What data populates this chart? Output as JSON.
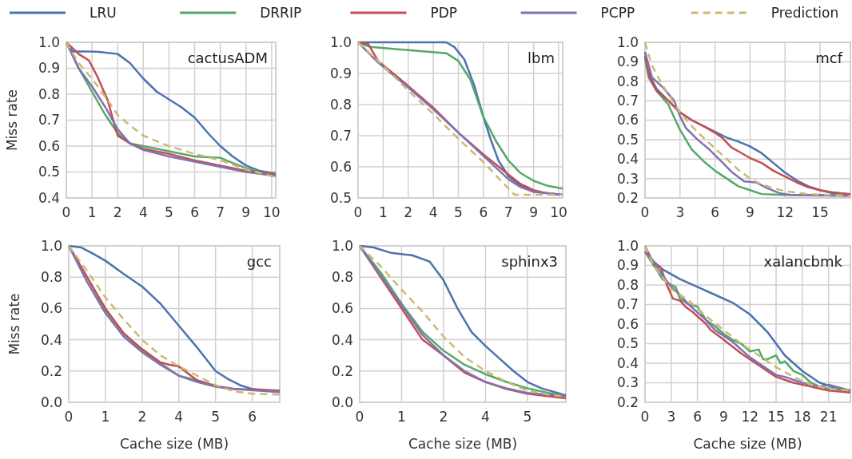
{
  "chart_data": [
    {
      "type": "line",
      "title": "cactusADM",
      "ylabel": "Miss rate",
      "legend": "top",
      "grid": true,
      "xlim": [
        0,
        10.2
      ],
      "ylim": [
        0.4,
        1.0
      ],
      "yticks": [
        {
          "value": 0.4,
          "label": "0.4"
        },
        {
          "value": 0.5,
          "label": "0.5"
        },
        {
          "value": 0.6,
          "label": "0.6"
        },
        {
          "value": 0.7,
          "label": "0.7"
        },
        {
          "value": 0.8,
          "label": "0.8"
        },
        {
          "value": 0.9,
          "label": "0.9"
        },
        {
          "value": 1.0,
          "label": "1.0"
        }
      ],
      "xticks": [
        0,
        {
          "value": 1.25,
          "label": "1"
        },
        {
          "value": 2.5,
          "label": "2"
        },
        {
          "value": 3.75,
          "label": "4"
        },
        5,
        {
          "value": 6.25,
          "label": "6"
        },
        {
          "value": 7.5,
          "label": "7"
        },
        {
          "value": 8.75,
          "label": "9"
        },
        10
      ],
      "series": [
        {
          "name": "LRU",
          "color": "#4c72b0",
          "x": [
            0,
            0.3,
            1,
            1.6,
            2.5,
            3.1,
            3.75,
            4.4,
            5,
            5.6,
            6.25,
            6.9,
            7.5,
            8.1,
            8.75,
            9.4,
            10.2
          ],
          "values": [
            1.0,
            0.965,
            0.965,
            0.963,
            0.955,
            0.92,
            0.86,
            0.81,
            0.78,
            0.75,
            0.71,
            0.65,
            0.6,
            0.56,
            0.525,
            0.505,
            0.495
          ]
        },
        {
          "name": "DRRIP",
          "color": "#55a868",
          "x": [
            0,
            0.6,
            1.25,
            1.9,
            2.5,
            3.1,
            3.75,
            5,
            6.25,
            7.5,
            8.1,
            8.75,
            9.4,
            10.2
          ],
          "values": [
            1.0,
            0.9,
            0.81,
            0.72,
            0.65,
            0.61,
            0.6,
            0.58,
            0.56,
            0.555,
            0.535,
            0.515,
            0.5,
            0.495
          ]
        },
        {
          "name": "PDP",
          "color": "#c44e52",
          "x": [
            0,
            0.6,
            1.1,
            1.5,
            2,
            2.5,
            3.1,
            3.75,
            5,
            6.25,
            7.5,
            8.75,
            10.2
          ],
          "values": [
            1.0,
            0.955,
            0.93,
            0.87,
            0.78,
            0.64,
            0.61,
            0.59,
            0.57,
            0.545,
            0.525,
            0.505,
            0.49
          ]
        },
        {
          "name": "PCPP",
          "color": "#8172b2",
          "x": [
            0,
            0.6,
            1.25,
            1.9,
            2.5,
            3.1,
            3.75,
            5,
            6.25,
            7.5,
            8.75,
            10.2
          ],
          "values": [
            1.0,
            0.9,
            0.83,
            0.75,
            0.665,
            0.61,
            0.585,
            0.56,
            0.54,
            0.52,
            0.5,
            0.485
          ]
        },
        {
          "name": "Prediction",
          "color": "#ccb974",
          "line_style": "dashed",
          "x": [
            0,
            0.6,
            1.25,
            1.9,
            2.5,
            3.1,
            3.75,
            5,
            6.25,
            7.5,
            8.75,
            10.2
          ],
          "values": [
            1.0,
            0.92,
            0.86,
            0.79,
            0.72,
            0.68,
            0.64,
            0.6,
            0.57,
            0.545,
            0.51,
            0.48
          ]
        }
      ]
    },
    {
      "type": "line",
      "title": "lbm",
      "grid": true,
      "xlim": [
        0,
        10.2
      ],
      "ylim": [
        0.5,
        1.0
      ],
      "yticks": [
        {
          "value": 0.5,
          "label": "0.5"
        },
        {
          "value": 0.6,
          "label": "0.6"
        },
        {
          "value": 0.7,
          "label": "0.7"
        },
        {
          "value": 0.8,
          "label": "0.8"
        },
        {
          "value": 0.9,
          "label": "0.9"
        },
        {
          "value": 1.0,
          "label": "1.0"
        }
      ],
      "xticks": [
        0,
        {
          "value": 1.25,
          "label": "1"
        },
        {
          "value": 2.5,
          "label": "2"
        },
        {
          "value": 3.75,
          "label": "4"
        },
        5,
        {
          "value": 6.25,
          "label": "6"
        },
        {
          "value": 7.5,
          "label": "7"
        },
        {
          "value": 8.75,
          "label": "9"
        },
        10
      ],
      "series": [
        {
          "color": "#4c72b0",
          "x": [
            0,
            4.4,
            4.8,
            5.3,
            5.8,
            6.25,
            6.6,
            7.0,
            7.5,
            8.1,
            8.75,
            10.2
          ],
          "values": [
            1.0,
            1.0,
            0.985,
            0.945,
            0.86,
            0.76,
            0.69,
            0.62,
            0.57,
            0.54,
            0.52,
            0.51
          ]
        },
        {
          "color": "#55a868",
          "x": [
            0,
            0.6,
            2.5,
            4.4,
            5,
            5.6,
            6.25,
            6.9,
            7.5,
            8.1,
            8.75,
            9.4,
            10.2
          ],
          "values": [
            1.0,
            0.985,
            0.975,
            0.965,
            0.94,
            0.88,
            0.76,
            0.68,
            0.62,
            0.58,
            0.555,
            0.54,
            0.53
          ]
        },
        {
          "color": "#c44e52",
          "x": [
            0,
            0.5,
            1,
            2.5,
            3.75,
            5,
            6.25,
            7.5,
            8.1,
            8.75,
            9.4,
            10.2
          ],
          "values": [
            1.0,
            0.995,
            0.94,
            0.86,
            0.79,
            0.71,
            0.64,
            0.575,
            0.545,
            0.525,
            0.515,
            0.51
          ]
        },
        {
          "color": "#8172b2",
          "x": [
            0,
            1,
            2.5,
            3.75,
            5,
            6.25,
            7.5,
            8.1,
            8.75,
            10.2
          ],
          "values": [
            1.0,
            0.935,
            0.855,
            0.785,
            0.71,
            0.635,
            0.56,
            0.535,
            0.52,
            0.51
          ]
        },
        {
          "color": "#ccb974",
          "line_style": "dashed",
          "x": [
            0,
            1.25,
            2.5,
            3.75,
            5,
            6.25,
            7.2,
            7.8,
            10.2
          ],
          "values": [
            1.0,
            0.925,
            0.845,
            0.77,
            0.69,
            0.615,
            0.55,
            0.51,
            0.51
          ]
        }
      ]
    },
    {
      "type": "line",
      "title": "mcf",
      "grid": true,
      "xlim": [
        0,
        17.6
      ],
      "ylim": [
        0.2,
        1.0
      ],
      "yticks": [
        {
          "value": 0.2,
          "label": "0.2"
        },
        {
          "value": 0.3,
          "label": "0.3"
        },
        {
          "value": 0.4,
          "label": "0.4"
        },
        {
          "value": 0.5,
          "label": "0.5"
        },
        {
          "value": 0.6,
          "label": "0.6"
        },
        {
          "value": 0.7,
          "label": "0.7"
        },
        {
          "value": 0.8,
          "label": "0.8"
        },
        {
          "value": 0.9,
          "label": "0.9"
        },
        {
          "value": 1.0,
          "label": "1.0"
        }
      ],
      "xticks": [
        0,
        3,
        6,
        9,
        12,
        15
      ],
      "series": [
        {
          "color": "#4c72b0",
          "x": [
            0,
            0.4,
            1,
            2,
            3,
            4,
            5,
            6,
            7,
            8,
            9,
            10,
            11,
            12,
            13,
            14,
            15,
            16,
            17.6
          ],
          "values": [
            0.95,
            0.83,
            0.76,
            0.7,
            0.64,
            0.6,
            0.57,
            0.54,
            0.51,
            0.49,
            0.465,
            0.43,
            0.38,
            0.33,
            0.29,
            0.26,
            0.24,
            0.225,
            0.22
          ]
        },
        {
          "color": "#55a868",
          "x": [
            0,
            0.3,
            1,
            2,
            2.3,
            3,
            4,
            5,
            6,
            7,
            8,
            9,
            10,
            12,
            17.6
          ],
          "values": [
            0.92,
            0.82,
            0.75,
            0.68,
            0.64,
            0.55,
            0.45,
            0.39,
            0.34,
            0.3,
            0.26,
            0.24,
            0.22,
            0.215,
            0.215
          ]
        },
        {
          "color": "#c44e52",
          "x": [
            0,
            0.4,
            1,
            2,
            3,
            4,
            5,
            6,
            6.6,
            7.4,
            8,
            9,
            10,
            11,
            12,
            13,
            14,
            15,
            16,
            17.6
          ],
          "values": [
            0.93,
            0.82,
            0.75,
            0.7,
            0.64,
            0.6,
            0.57,
            0.535,
            0.51,
            0.46,
            0.44,
            0.405,
            0.38,
            0.34,
            0.31,
            0.28,
            0.255,
            0.24,
            0.23,
            0.22
          ]
        },
        {
          "color": "#8172b2",
          "x": [
            0,
            0.6,
            1.5,
            2.5,
            3,
            3.5,
            4.5,
            5.5,
            6.5,
            7.5,
            8.5,
            9.5,
            10.5,
            11.5,
            12.5,
            17.6
          ],
          "values": [
            0.95,
            0.82,
            0.77,
            0.7,
            0.62,
            0.56,
            0.5,
            0.45,
            0.39,
            0.33,
            0.285,
            0.28,
            0.25,
            0.225,
            0.215,
            0.21
          ]
        },
        {
          "color": "#ccb974",
          "line_style": "dashed",
          "x": [
            0,
            0.6,
            1.5,
            3,
            4,
            5,
            6,
            7,
            8,
            9,
            10,
            11,
            12,
            14,
            16,
            17.6
          ],
          "values": [
            1.0,
            0.88,
            0.78,
            0.64,
            0.57,
            0.51,
            0.455,
            0.4,
            0.345,
            0.3,
            0.27,
            0.25,
            0.235,
            0.22,
            0.215,
            0.21
          ]
        }
      ]
    },
    {
      "type": "line",
      "title": "gcc",
      "ylabel": "Miss rate",
      "xlabel": "Cache size (MB)",
      "grid": true,
      "xlim": [
        0,
        6.9
      ],
      "ylim": [
        0,
        1.0
      ],
      "yticks": [
        {
          "value": 0,
          "label": "0.0"
        },
        {
          "value": 0.2,
          "label": "0.2"
        },
        {
          "value": 0.4,
          "label": "0.4"
        },
        {
          "value": 0.6,
          "label": "0.6"
        },
        {
          "value": 0.8,
          "label": "0.8"
        },
        {
          "value": 1.0,
          "label": "1.0"
        }
      ],
      "xticks": [
        0,
        {
          "value": 1.2,
          "label": "1"
        },
        {
          "value": 2.4,
          "label": "2"
        },
        {
          "value": 3.6,
          "label": "4"
        },
        {
          "value": 4.8,
          "label": "5"
        },
        6
      ],
      "series": [
        {
          "color": "#4c72b0",
          "x": [
            0,
            0.4,
            0.8,
            1.2,
            1.8,
            2.4,
            3.0,
            3.6,
            4.2,
            4.8,
            5.2,
            5.6,
            6.0,
            6.9
          ],
          "values": [
            1.0,
            0.99,
            0.95,
            0.905,
            0.82,
            0.74,
            0.63,
            0.49,
            0.35,
            0.2,
            0.15,
            0.11,
            0.085,
            0.07
          ]
        },
        {
          "color": "#55a868",
          "x": [
            0,
            0.6,
            1.2,
            1.8,
            2.4,
            3,
            3.6,
            4.2,
            4.8
          ],
          "values": [
            1.0,
            0.8,
            0.59,
            0.44,
            0.33,
            0.25,
            0.17,
            0.14,
            0.105
          ]
        },
        {
          "color": "#c44e52",
          "x": [
            0,
            0.6,
            1.2,
            1.8,
            2.4,
            3,
            3.3,
            3.6,
            4.0,
            4.2,
            4.8,
            5.4,
            6.9
          ],
          "values": [
            1.0,
            0.8,
            0.6,
            0.44,
            0.34,
            0.255,
            0.24,
            0.23,
            0.17,
            0.14,
            0.105,
            0.085,
            0.075
          ]
        },
        {
          "color": "#8172b2",
          "x": [
            0,
            0.6,
            1.2,
            1.8,
            2.4,
            3,
            3.6,
            4.2,
            4.8,
            5.4,
            6.9
          ],
          "values": [
            1.0,
            0.77,
            0.57,
            0.42,
            0.32,
            0.24,
            0.17,
            0.13,
            0.1,
            0.085,
            0.065
          ]
        },
        {
          "color": "#ccb974",
          "line_style": "dashed",
          "x": [
            0,
            0.6,
            1.2,
            1.8,
            2.4,
            3,
            3.6,
            4.2,
            4.8,
            5.4,
            6,
            6.9
          ],
          "values": [
            1.0,
            0.84,
            0.67,
            0.53,
            0.4,
            0.3,
            0.23,
            0.17,
            0.11,
            0.07,
            0.055,
            0.05
          ]
        }
      ]
    },
    {
      "type": "line",
      "title": "sphinx3",
      "xlabel": "Cache size (MB)",
      "grid": true,
      "xlim": [
        0,
        5.9
      ],
      "ylim": [
        0,
        1.0
      ],
      "yticks": [
        {
          "value": 0,
          "label": "0.0"
        },
        {
          "value": 0.2,
          "label": "0.2"
        },
        {
          "value": 0.4,
          "label": "0.4"
        },
        {
          "value": 0.6,
          "label": "0.6"
        },
        {
          "value": 0.8,
          "label": "0.8"
        },
        {
          "value": 1.0,
          "label": "1.0"
        }
      ],
      "xticks": [
        0,
        {
          "value": 1.2,
          "label": "1"
        },
        {
          "value": 2.4,
          "label": "2"
        },
        {
          "value": 3.6,
          "label": "4"
        },
        {
          "value": 4.8,
          "label": "5"
        }
      ],
      "series": [
        {
          "color": "#4c72b0",
          "x": [
            0,
            0.4,
            0.9,
            1.5,
            2.0,
            2.4,
            2.8,
            3.2,
            3.6,
            4.0,
            4.4,
            4.8,
            5.2,
            5.9
          ],
          "values": [
            1.0,
            0.99,
            0.955,
            0.94,
            0.9,
            0.78,
            0.6,
            0.45,
            0.36,
            0.28,
            0.2,
            0.13,
            0.09,
            0.045
          ]
        },
        {
          "color": "#55a868",
          "x": [
            0,
            0.6,
            1.2,
            1.8,
            2.4,
            3.0,
            3.6,
            4.2,
            4.8,
            5.4,
            5.9
          ],
          "values": [
            1.0,
            0.83,
            0.63,
            0.45,
            0.33,
            0.24,
            0.18,
            0.13,
            0.09,
            0.06,
            0.04
          ]
        },
        {
          "color": "#c44e52",
          "x": [
            0,
            0.6,
            1.2,
            1.8,
            2.4,
            3.0,
            3.6,
            4.2,
            4.8,
            5.9
          ],
          "values": [
            1.0,
            0.8,
            0.6,
            0.4,
            0.3,
            0.19,
            0.13,
            0.085,
            0.055,
            0.025
          ]
        },
        {
          "color": "#8172b2",
          "x": [
            0,
            0.6,
            1.2,
            1.8,
            2.4,
            3.0,
            3.6,
            4.2,
            4.8,
            5.9
          ],
          "values": [
            1.0,
            0.81,
            0.62,
            0.43,
            0.3,
            0.2,
            0.13,
            0.09,
            0.06,
            0.04
          ]
        },
        {
          "color": "#ccb974",
          "line_style": "dashed",
          "x": [
            0,
            0.6,
            1.2,
            1.8,
            2.4,
            3.0,
            3.6,
            4.2,
            4.8,
            5.4,
            5.9
          ],
          "values": [
            1.0,
            0.87,
            0.72,
            0.58,
            0.42,
            0.29,
            0.2,
            0.13,
            0.075,
            0.05,
            0.035
          ]
        }
      ]
    },
    {
      "type": "line",
      "title": "xalancbmk",
      "xlabel": "Cache size (MB)",
      "grid": true,
      "xlim": [
        0,
        23.5
      ],
      "ylim": [
        0.2,
        1.0
      ],
      "yticks": [
        {
          "value": 0.2,
          "label": "0.2"
        },
        {
          "value": 0.3,
          "label": "0.3"
        },
        {
          "value": 0.4,
          "label": "0.4"
        },
        {
          "value": 0.5,
          "label": "0.5"
        },
        {
          "value": 0.6,
          "label": "0.6"
        },
        {
          "value": 0.7,
          "label": "0.7"
        },
        {
          "value": 0.8,
          "label": "0.8"
        },
        {
          "value": 0.9,
          "label": "0.9"
        },
        {
          "value": 1.0,
          "label": "1.0"
        }
      ],
      "xticks": [
        0,
        3,
        6,
        9,
        12,
        15,
        18,
        21
      ],
      "series": [
        {
          "color": "#4c72b0",
          "x": [
            0,
            1,
            2,
            4,
            6,
            8,
            10,
            12,
            14,
            15,
            16,
            18,
            20,
            22,
            23.5
          ],
          "values": [
            0.97,
            0.92,
            0.88,
            0.83,
            0.79,
            0.75,
            0.71,
            0.65,
            0.56,
            0.5,
            0.44,
            0.36,
            0.3,
            0.27,
            0.26
          ]
        },
        {
          "color": "#55a868",
          "x": [
            0,
            1,
            2,
            3,
            3.5,
            4,
            5,
            6,
            7,
            8,
            9,
            10,
            11,
            12,
            13,
            13.5,
            14,
            15,
            15.5,
            16,
            17,
            18,
            19,
            20,
            21,
            23.5
          ],
          "values": [
            0.97,
            0.9,
            0.83,
            0.8,
            0.79,
            0.73,
            0.7,
            0.69,
            0.62,
            0.59,
            0.55,
            0.52,
            0.5,
            0.46,
            0.47,
            0.42,
            0.42,
            0.44,
            0.4,
            0.41,
            0.36,
            0.34,
            0.3,
            0.28,
            0.27,
            0.26
          ]
        },
        {
          "color": "#c44e52",
          "x": [
            0,
            1,
            1.8,
            2.5,
            3.2,
            4,
            4.6,
            5.5,
            6,
            7,
            7.5,
            9,
            11,
            13,
            15,
            17,
            19,
            21,
            23.5
          ],
          "values": [
            1.0,
            0.91,
            0.89,
            0.8,
            0.73,
            0.72,
            0.69,
            0.66,
            0.64,
            0.6,
            0.57,
            0.52,
            0.45,
            0.39,
            0.33,
            0.3,
            0.28,
            0.26,
            0.25
          ]
        },
        {
          "color": "#8172b2",
          "x": [
            0,
            1,
            2,
            3,
            4,
            5,
            6,
            7,
            8,
            10,
            12,
            14,
            15,
            16,
            18,
            19,
            20,
            21,
            23.5
          ],
          "values": [
            0.97,
            0.92,
            0.85,
            0.79,
            0.75,
            0.7,
            0.66,
            0.62,
            0.57,
            0.51,
            0.43,
            0.37,
            0.34,
            0.33,
            0.3,
            0.29,
            0.28,
            0.29,
            0.26
          ]
        },
        {
          "color": "#ccb974",
          "line_style": "dashed",
          "x": [
            0,
            1,
            2,
            3,
            5,
            7,
            9,
            11,
            13,
            15,
            17,
            19,
            21,
            23.5
          ],
          "values": [
            1.0,
            0.9,
            0.84,
            0.78,
            0.72,
            0.64,
            0.57,
            0.5,
            0.44,
            0.38,
            0.33,
            0.29,
            0.27,
            0.26
          ]
        }
      ]
    }
  ]
}
